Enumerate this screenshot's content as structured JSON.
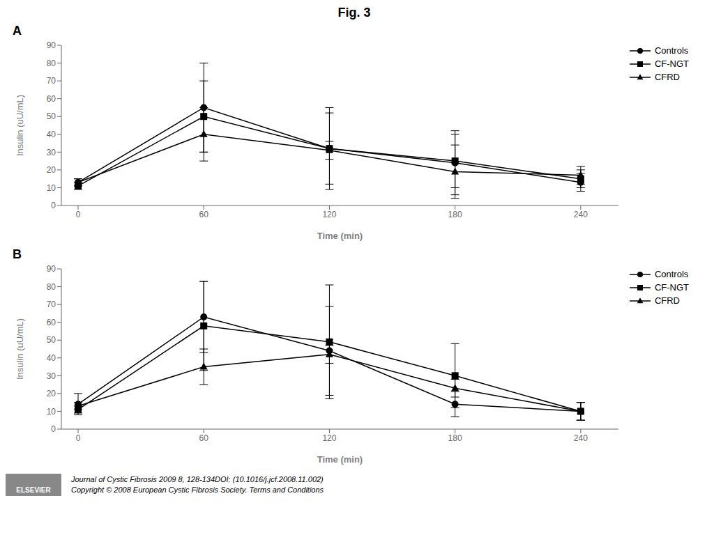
{
  "title": "Fig. 3",
  "annotations": [
    "Journal of Cystic Fibrosis 2009 8, 128-134DOI: (10.1016/j.jcf.2008.11.002)",
    "Copyright © 2008 European Cystic Fibrosis Society.  Terms and Conditions",
    "ELSEVIER"
  ],
  "chart_data": [
    {
      "type": "line",
      "title": "A",
      "x": [
        0,
        60,
        120,
        180,
        240
      ],
      "xlim": [
        -8,
        258
      ],
      "xticks": [
        0,
        60,
        120,
        180,
        240
      ],
      "ylim": [
        0,
        90
      ],
      "yticks": [
        0,
        10,
        20,
        30,
        40,
        50,
        60,
        70,
        80,
        90
      ],
      "x_label": "Time (min)",
      "y_label": "Insulin (uU/mL)",
      "legend": "upper right",
      "grid": false,
      "series": [
        {
          "name": "Controls",
          "color": "#000000",
          "marker": "circle",
          "line_style": "solid",
          "values": [
            13,
            55,
            32,
            24,
            13
          ],
          "yerr": [
            2,
            25,
            23,
            18,
            5
          ]
        },
        {
          "name": "CF-NGT",
          "color": "#000000",
          "marker": "square",
          "line_style": "solid",
          "values": [
            11,
            50,
            32,
            25,
            15
          ],
          "yerr": [
            2,
            20,
            20,
            15,
            5
          ]
        },
        {
          "name": "CFRD",
          "color": "#000000",
          "marker": "triangle",
          "line_style": "solid",
          "values": [
            13,
            40,
            31,
            19,
            17
          ],
          "yerr": [
            2,
            15,
            5,
            15,
            5
          ]
        }
      ]
    },
    {
      "type": "line",
      "title": "B",
      "x": [
        0,
        60,
        120,
        180,
        240
      ],
      "xlim": [
        -8,
        258
      ],
      "xticks": [
        0,
        60,
        120,
        180,
        240
      ],
      "ylim": [
        0,
        90
      ],
      "yticks": [
        0,
        10,
        20,
        30,
        40,
        50,
        60,
        70,
        80,
        90
      ],
      "x_label": "Time (min)",
      "y_label": "Insulin (uU/mL)",
      "legend": "upper right",
      "grid": false,
      "series": [
        {
          "name": "Controls",
          "color": "#000000",
          "marker": "circle",
          "line_style": "solid",
          "values": [
            14,
            63,
            44,
            14,
            10
          ],
          "yerr": [
            6,
            20,
            25,
            7,
            5
          ]
        },
        {
          "name": "CF-NGT",
          "color": "#000000",
          "marker": "square",
          "line_style": "solid",
          "values": [
            11,
            58,
            49,
            30,
            10
          ],
          "yerr": [
            2,
            25,
            32,
            18,
            5
          ]
        },
        {
          "name": "CFRD",
          "color": "#000000",
          "marker": "triangle",
          "line_style": "solid",
          "values": [
            13,
            35,
            42,
            23,
            10
          ],
          "yerr": [
            2,
            10,
            5,
            5,
            5
          ]
        }
      ]
    }
  ]
}
